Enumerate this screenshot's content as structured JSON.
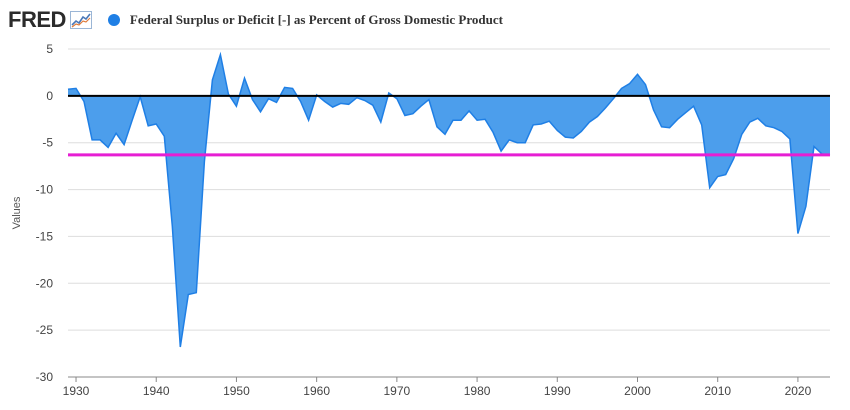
{
  "header": {
    "logo_text": "FRED",
    "logo_icon": "fred-chart-icon",
    "series_title": "Federal Surplus or Deficit [-] as Percent of Gross Domestic Product"
  },
  "colors": {
    "series": "#1f7fe5",
    "series_fill": "#4c9eec",
    "zero_line": "#000000",
    "reference_line": "#e61ed3",
    "grid": "#dddddd"
  },
  "chart_data": {
    "type": "area",
    "title": "Federal Surplus or Deficit [-] as Percent of Gross Domestic Product",
    "xlabel": "",
    "ylabel": "Values",
    "xlim": [
      1929,
      2024
    ],
    "ylim": [
      -30,
      5
    ],
    "x_ticks": [
      1930,
      1940,
      1950,
      1960,
      1970,
      1980,
      1990,
      2000,
      2010,
      2020
    ],
    "y_ticks": [
      5,
      0,
      -5,
      -10,
      -15,
      -20,
      -25,
      -30
    ],
    "x_tick_labels": [
      "1930",
      "1940",
      "1950",
      "1960",
      "1970",
      "1980",
      "1990",
      "2000",
      "2010",
      "2020"
    ],
    "y_tick_labels": [
      "5",
      "0",
      "-5",
      "-10",
      "-15",
      "-20",
      "-25",
      "-30"
    ],
    "reference_lines": [
      {
        "name": "zero-line",
        "y": 0
      },
      {
        "name": "reference-line",
        "y": -6.3
      }
    ],
    "series": [
      {
        "name": "Federal Surplus or Deficit [-] as Percent of Gross Domestic Product",
        "x": [
          1929,
          1930,
          1931,
          1932,
          1933,
          1934,
          1935,
          1936,
          1937,
          1938,
          1939,
          1940,
          1941,
          1942,
          1943,
          1944,
          1945,
          1946,
          1947,
          1948,
          1949,
          1950,
          1951,
          1952,
          1953,
          1954,
          1955,
          1956,
          1957,
          1958,
          1959,
          1960,
          1961,
          1962,
          1963,
          1964,
          1965,
          1966,
          1967,
          1968,
          1969,
          1970,
          1971,
          1972,
          1973,
          1974,
          1975,
          1976,
          1977,
          1978,
          1979,
          1980,
          1981,
          1982,
          1983,
          1984,
          1985,
          1986,
          1987,
          1988,
          1989,
          1990,
          1991,
          1992,
          1993,
          1994,
          1995,
          1996,
          1997,
          1998,
          1999,
          2000,
          2001,
          2002,
          2003,
          2004,
          2005,
          2006,
          2007,
          2008,
          2009,
          2010,
          2011,
          2012,
          2013,
          2014,
          2015,
          2016,
          2017,
          2018,
          2019,
          2020,
          2021,
          2022,
          2023,
          2024
        ],
        "values": [
          0.7,
          0.8,
          -0.6,
          -4.7,
          -4.7,
          -5.5,
          -4.0,
          -5.2,
          -2.6,
          -0.1,
          -3.2,
          -3.0,
          -4.3,
          -13.9,
          -26.8,
          -21.2,
          -21.0,
          -7.0,
          1.7,
          4.4,
          0.2,
          -1.1,
          1.9,
          -0.4,
          -1.7,
          -0.3,
          -0.7,
          0.9,
          0.8,
          -0.6,
          -2.6,
          0.1,
          -0.6,
          -1.2,
          -0.8,
          -0.9,
          -0.2,
          -0.5,
          -1.0,
          -2.8,
          0.3,
          -0.3,
          -2.1,
          -1.9,
          -1.1,
          -0.4,
          -3.3,
          -4.1,
          -2.6,
          -2.6,
          -1.6,
          -2.6,
          -2.5,
          -3.9,
          -5.9,
          -4.7,
          -5.0,
          -5.0,
          -3.1,
          -3.0,
          -2.7,
          -3.7,
          -4.4,
          -4.5,
          -3.8,
          -2.8,
          -2.2,
          -1.3,
          -0.3,
          0.8,
          1.3,
          2.3,
          1.2,
          -1.5,
          -3.3,
          -3.4,
          -2.5,
          -1.8,
          -1.1,
          -3.1,
          -9.8,
          -8.6,
          -8.4,
          -6.7,
          -4.1,
          -2.8,
          -2.4,
          -3.2,
          -3.4,
          -3.8,
          -4.6,
          -14.7,
          -11.8,
          -5.4,
          -6.2,
          -6.3
        ]
      }
    ]
  }
}
